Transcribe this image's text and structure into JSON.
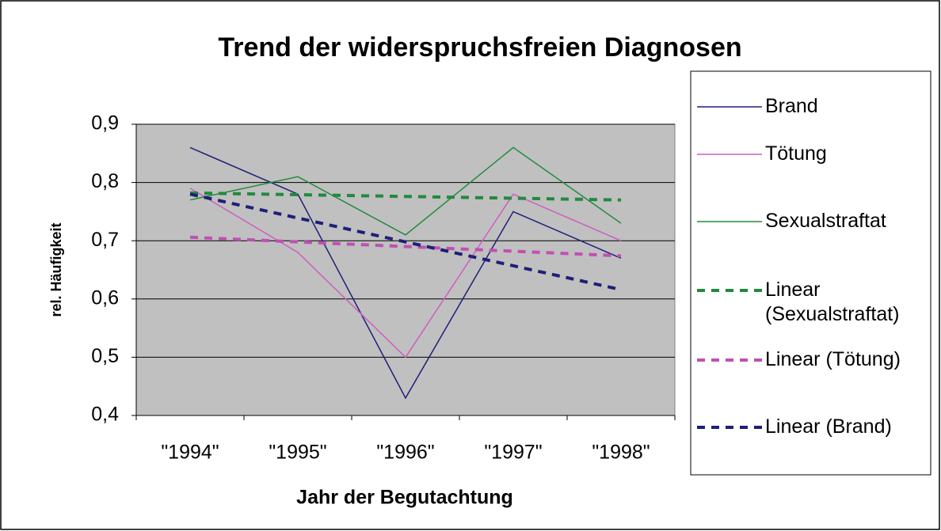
{
  "chart_data": {
    "type": "line",
    "title": "Trend der widerspruchsfreien Diagnosen",
    "x_label": "Jahr der Begutachtung",
    "y_label": "rel. Häufigkeit",
    "categories": [
      "\"1994\"",
      "\"1995\"",
      "\"1996\"",
      "\"1997\"",
      "\"1998\""
    ],
    "ylim": [
      0.4,
      0.9
    ],
    "yticks": [
      {
        "value": 0.4,
        "label": "0,4"
      },
      {
        "value": 0.5,
        "label": "0,5"
      },
      {
        "value": 0.6,
        "label": "0,6"
      },
      {
        "value": 0.7,
        "label": "0,7"
      },
      {
        "value": 0.8,
        "label": "0,8"
      },
      {
        "value": 0.9,
        "label": "0,9"
      }
    ],
    "grid": true,
    "legend": "right",
    "series": [
      {
        "name": "Brand",
        "color": "#1f1f78",
        "dashed": false,
        "values": [
          0.86,
          0.78,
          0.43,
          0.75,
          0.67
        ]
      },
      {
        "name": "Tötung",
        "color": "#cc5fc0",
        "dashed": false,
        "values": [
          0.79,
          0.68,
          0.5,
          0.78,
          0.7
        ]
      },
      {
        "name": "Sexualstraftat",
        "color": "#228a3c",
        "dashed": false,
        "values": [
          0.77,
          0.81,
          0.71,
          0.86,
          0.73
        ]
      },
      {
        "name": "Linear (Sexualstraftat)",
        "color": "#228a3c",
        "dashed": true,
        "values": [
          0.782,
          0.779,
          0.776,
          0.773,
          0.77
        ]
      },
      {
        "name": "Linear (Tötung)",
        "color": "#c050b4",
        "dashed": true,
        "values": [
          0.706,
          0.698,
          0.69,
          0.682,
          0.674
        ]
      },
      {
        "name": "Linear (Brand)",
        "color": "#1f1f78",
        "dashed": true,
        "values": [
          0.78,
          0.739,
          0.698,
          0.657,
          0.616
        ]
      }
    ]
  }
}
